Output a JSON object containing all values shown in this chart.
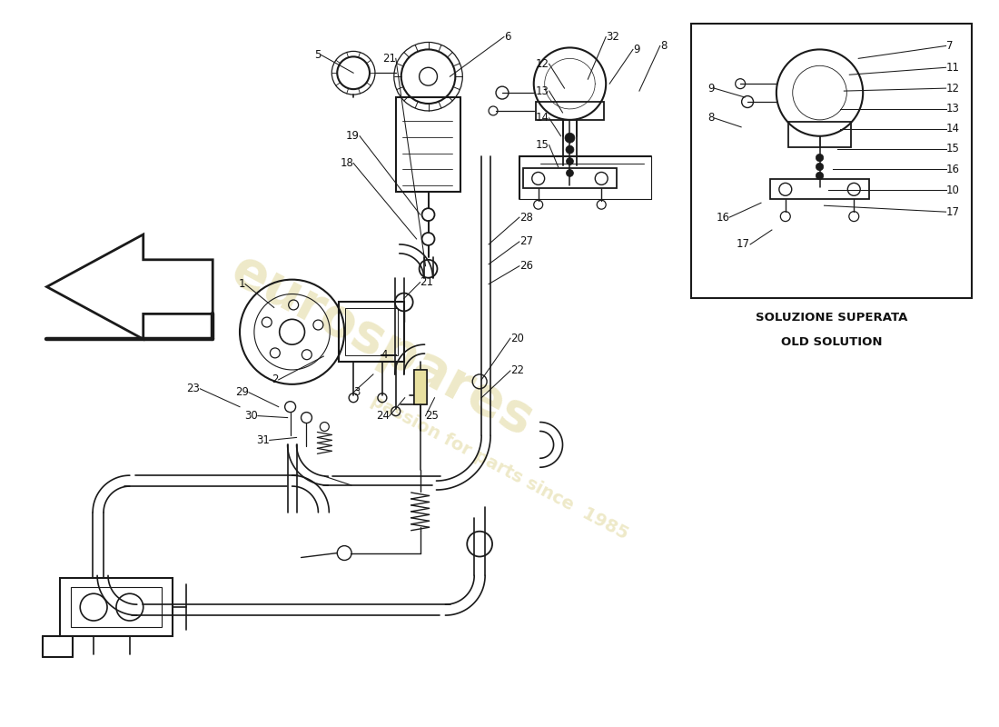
{
  "bg_color": "#ffffff",
  "line_color": "#1a1a1a",
  "text_color": "#111111",
  "box_label_line1": "SOLUZIONE SUPERATA",
  "box_label_line2": "OLD SOLUTION",
  "watermark_color1": "#c8b84a",
  "watermark_color2": "#c8b84a",
  "figsize": [
    11.0,
    8.0
  ],
  "dpi": 100,
  "xlim": [
    0,
    11
  ],
  "ylim": [
    0,
    8
  ]
}
